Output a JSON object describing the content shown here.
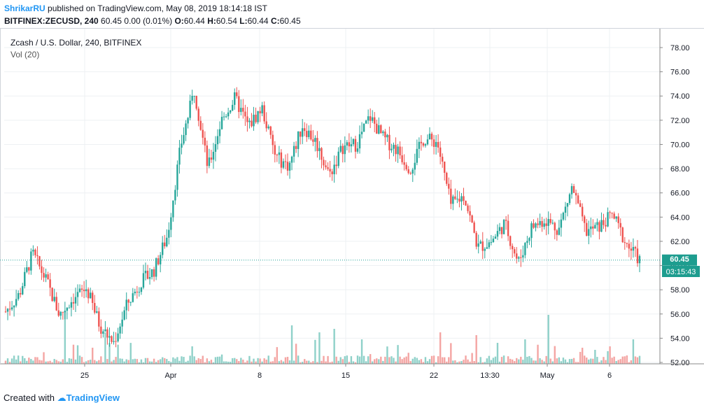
{
  "header": {
    "publisher": "ShrikarRU",
    "published_text": "published on TradingView.com, May 08, 2019 18:14:18 IST",
    "symbol": "BITFINEX:ZECUSD, 240",
    "quote": "60.45 0.00 (0.01%)",
    "open_label": "O:",
    "open": "60.44",
    "high_label": "H:",
    "high": "60.54",
    "low_label": "L:",
    "low": "60.44",
    "close_label": "C:",
    "close": "60.45"
  },
  "legend": {
    "title": "Zcash / U.S. Dollar, 240, BITFINEX",
    "volume": "Vol (20)"
  },
  "price_badge": {
    "price": "60.45",
    "countdown": "03:15:43"
  },
  "footer": {
    "created_with": "Created with",
    "brand": "TradingView"
  },
  "colors": {
    "up": "#26a69a",
    "down": "#ef5350",
    "up_vol": "#8fd1c9",
    "down_vol": "#f4a5a3",
    "grid": "#eef0f3",
    "axis_text": "#131722",
    "badge": "#1e9d8f",
    "last_line": "#26a69a"
  },
  "chart_data": {
    "type": "candlestick",
    "symbol": "BITFINEX:ZECUSD",
    "interval": "240",
    "y_axis": {
      "min": 52,
      "max": 78,
      "ticks": [
        "78.00",
        "76.00",
        "74.00",
        "72.00",
        "70.00",
        "68.00",
        "66.00",
        "64.00",
        "62.00",
        "60.00",
        "58.00",
        "56.00",
        "54.00",
        "52.00"
      ]
    },
    "x_tick_labels": [
      "25",
      "Apr",
      "8",
      "15",
      "22",
      "13:30",
      "May",
      "6"
    ],
    "last_price": 60.45,
    "close_path_approx": [
      {
        "x": "2019-03-19",
        "close": 56.2
      },
      {
        "x": "2019-03-20",
        "close": 57.6
      },
      {
        "x": "2019-03-20 12:00",
        "close": 61.0
      },
      {
        "x": "2019-03-21",
        "close": 58.8
      },
      {
        "x": "2019-03-22",
        "close": 55.9
      },
      {
        "x": "2019-03-24",
        "close": 57.3
      },
      {
        "x": "2019-03-25",
        "close": 58.1
      },
      {
        "x": "2019-03-27",
        "close": 55.0
      },
      {
        "x": "2019-03-28",
        "close": 53.6
      },
      {
        "x": "2019-03-29",
        "close": 56.8
      },
      {
        "x": "2019-03-31",
        "close": 58.6
      },
      {
        "x": "2019-04-01",
        "close": 59.6
      },
      {
        "x": "2019-04-02",
        "close": 62.5
      },
      {
        "x": "2019-04-03",
        "close": 70.0
      },
      {
        "x": "2019-04-04",
        "close": 74.5
      },
      {
        "x": "2019-04-05",
        "close": 68.0
      },
      {
        "x": "2019-04-06",
        "close": 72.0
      },
      {
        "x": "2019-04-08",
        "close": 73.8
      },
      {
        "x": "2019-04-09",
        "close": 71.5
      },
      {
        "x": "2019-04-10",
        "close": 73.0
      },
      {
        "x": "2019-04-11",
        "close": 69.0
      },
      {
        "x": "2019-04-12",
        "close": 68.2
      },
      {
        "x": "2019-04-13",
        "close": 71.6
      },
      {
        "x": "2019-04-15",
        "close": 70.2
      },
      {
        "x": "2019-04-17",
        "close": 67.5
      },
      {
        "x": "2019-04-18",
        "close": 69.8
      },
      {
        "x": "2019-04-19",
        "close": 70.0
      },
      {
        "x": "2019-04-21",
        "close": 72.3
      },
      {
        "x": "2019-04-22",
        "close": 70.5
      },
      {
        "x": "2019-04-23",
        "close": 69.6
      },
      {
        "x": "2019-04-24",
        "close": 68.0
      },
      {
        "x": "2019-04-25",
        "close": 70.5
      },
      {
        "x": "2019-04-26",
        "close": 70.2
      },
      {
        "x": "2019-04-27",
        "close": 65.0
      },
      {
        "x": "2019-04-28",
        "close": 65.8
      },
      {
        "x": "2019-04-29",
        "close": 61.5
      },
      {
        "x": "2019-04-30",
        "close": 62.0
      },
      {
        "x": "2019-05-01",
        "close": 63.5
      },
      {
        "x": "2019-05-02",
        "close": 60.2
      },
      {
        "x": "2019-05-03",
        "close": 63.2
      },
      {
        "x": "2019-05-04",
        "close": 63.8
      },
      {
        "x": "2019-05-05",
        "close": 63.0
      },
      {
        "x": "2019-05-05 12:00",
        "close": 66.5
      },
      {
        "x": "2019-05-06",
        "close": 62.8
      },
      {
        "x": "2019-05-07",
        "close": 63.2
      },
      {
        "x": "2019-05-07 12:00",
        "close": 64.2
      },
      {
        "x": "2019-05-08",
        "close": 61.8
      },
      {
        "x": "2019-05-08 12:00",
        "close": 60.45
      }
    ]
  }
}
